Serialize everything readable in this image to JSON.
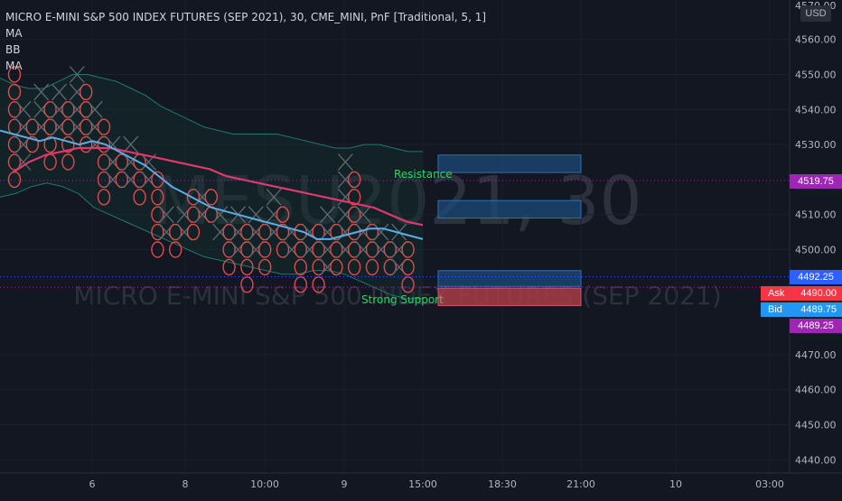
{
  "header": {
    "title": "MICRO E-MINI S&P 500 INDEX FUTURES (SEP 2021), 30, CME_MINI, PnF [Traditional, 5, 1]",
    "indicators": [
      "MA",
      "BB",
      "MA"
    ]
  },
  "watermark": {
    "symbol": "MESU2021, 30",
    "description": "MICRO E-MINI S&P 500 INDEX FUTURES (SEP 2021)"
  },
  "currency_label": "USD",
  "price_axis": {
    "top_value": "4570.00",
    "ticks": [
      "4560.00",
      "4550.00",
      "4540.00",
      "4530.00",
      "4510.00",
      "4500.00",
      "4470.00",
      "4460.00",
      "4450.00",
      "4440.00"
    ]
  },
  "time_axis": {
    "ticks": [
      "6",
      "8",
      "10:00",
      "9",
      "15:00",
      "18:30",
      "21:00",
      "10",
      "03:00"
    ]
  },
  "price_tags": [
    {
      "label": "4519.75",
      "color": "#9c27b0"
    },
    {
      "label": "4492.25",
      "color": "#2962ff"
    },
    {
      "label": "4489.25",
      "color": "#9c27b0"
    }
  ],
  "quotes": {
    "ask": {
      "label": "Ask",
      "value": "4490.00",
      "color": "#f23645"
    },
    "bid": {
      "label": "Bid",
      "value": "4489.75",
      "color": "#2196f3"
    }
  },
  "annotations": {
    "resistance": "Resistance",
    "support": "Strong Support"
  },
  "colors": {
    "background": "#131722",
    "x_mark": "#5d6b74",
    "o_mark": "#e04b4b",
    "ma_fast": "#5aaee6",
    "ma_slow": "#e0386e",
    "bb_band": "#1f7a6a",
    "zone_fill": "#1c4a7a",
    "zone_border": "#2e6fbf",
    "support_zone": "#a83c47"
  },
  "chart_data": {
    "type": "line",
    "title": "MICRO E-MINI S&P 500 INDEX FUTURES (SEP 2021), 30, CME_MINI, PnF [Traditional, 5, 1]",
    "box_size": 5,
    "reversal": 1,
    "ylim": [
      4437,
      4572
    ],
    "columns": [
      {
        "type": "O",
        "high": 4550,
        "low": 4520
      },
      {
        "type": "X",
        "high": 4540,
        "low": 4525
      },
      {
        "type": "O",
        "high": 4535,
        "low": 4530
      },
      {
        "type": "X",
        "high": 4545,
        "low": 4535
      },
      {
        "type": "O",
        "high": 4540,
        "low": 4525
      },
      {
        "type": "X",
        "high": 4545,
        "low": 4535
      },
      {
        "type": "O",
        "high": 4540,
        "low": 4525
      },
      {
        "type": "X",
        "high": 4550,
        "low": 4535
      },
      {
        "type": "O",
        "high": 4545,
        "low": 4530
      },
      {
        "type": "X",
        "high": 4540,
        "low": 4530
      },
      {
        "type": "O",
        "high": 4535,
        "low": 4515
      },
      {
        "type": "X",
        "high": 4530,
        "low": 4520
      },
      {
        "type": "O",
        "high": 4525,
        "low": 4520
      },
      {
        "type": "X",
        "high": 4530,
        "low": 4520
      },
      {
        "type": "O",
        "high": 4525,
        "low": 4515
      },
      {
        "type": "X",
        "high": 4525,
        "low": 4520
      },
      {
        "type": "O",
        "high": 4520,
        "low": 4500
      },
      {
        "type": "X",
        "high": 4510,
        "low": 4505
      },
      {
        "type": "O",
        "high": 4505,
        "low": 4500
      },
      {
        "type": "X",
        "high": 4510,
        "low": 4505
      },
      {
        "type": "O",
        "high": 4515,
        "low": 4505
      },
      {
        "type": "X",
        "high": 4515,
        "low": 4510
      },
      {
        "type": "O",
        "high": 4515,
        "low": 4510
      },
      {
        "type": "X",
        "high": 4510,
        "low": 4505
      },
      {
        "type": "O",
        "high": 4505,
        "low": 4495
      },
      {
        "type": "X",
        "high": 4510,
        "low": 4500
      },
      {
        "type": "O",
        "high": 4505,
        "low": 4490
      },
      {
        "type": "X",
        "high": 4510,
        "low": 4500
      },
      {
        "type": "O",
        "high": 4505,
        "low": 4495
      },
      {
        "type": "X",
        "high": 4515,
        "low": 4505
      },
      {
        "type": "O",
        "high": 4510,
        "low": 4500
      },
      {
        "type": "X",
        "high": 4505,
        "low": 4500
      },
      {
        "type": "O",
        "high": 4505,
        "low": 4490
      },
      {
        "type": "X",
        "high": 4505,
        "low": 4500
      },
      {
        "type": "O",
        "high": 4505,
        "low": 4490
      },
      {
        "type": "X",
        "high": 4510,
        "low": 4495
      },
      {
        "type": "O",
        "high": 4505,
        "low": 4495
      },
      {
        "type": "X",
        "high": 4525,
        "low": 4500
      },
      {
        "type": "O",
        "high": 4520,
        "low": 4495
      },
      {
        "type": "X",
        "high": 4510,
        "low": 4500
      },
      {
        "type": "O",
        "high": 4505,
        "low": 4495
      },
      {
        "type": "X",
        "high": 4505,
        "low": 4500
      },
      {
        "type": "O",
        "high": 4500,
        "low": 4495
      },
      {
        "type": "X",
        "high": 4505,
        "low": 4495
      },
      {
        "type": "O",
        "high": 4500,
        "low": 4490
      }
    ],
    "ma_fast": [
      4534,
      4533,
      4532,
      4531,
      4532,
      4531,
      4530,
      4531,
      4530,
      4528,
      4526,
      4524,
      4521,
      4518,
      4516,
      4514,
      4512,
      4511,
      4510,
      4509,
      4508,
      4507,
      4506,
      4505,
      4503,
      4503,
      4504,
      4505,
      4506,
      4506,
      4505,
      4504,
      4503
    ],
    "ma_slow": [
      4522,
      4525,
      4527,
      4528,
      4529,
      4529,
      4529,
      4528,
      4527,
      4526,
      4525,
      4524,
      4523,
      4521,
      4520,
      4519,
      4518,
      4517,
      4516,
      4515,
      4514,
      4513,
      4512,
      4510,
      4508,
      4507
    ],
    "bb_upper": [
      4549,
      4547,
      4546,
      4546,
      4548,
      4550,
      4550,
      4549,
      4548,
      4546,
      4544,
      4541,
      4539,
      4537,
      4535,
      4534,
      4533,
      4533,
      4533,
      4533,
      4532,
      4531,
      4530,
      4529,
      4529,
      4530,
      4530,
      4529,
      4528,
      4528
    ],
    "bb_lower": [
      4515,
      4516,
      4518,
      4519,
      4518,
      4516,
      4512,
      4510,
      4508,
      4506,
      4504,
      4502,
      4500,
      4498,
      4497,
      4496,
      4495,
      4494,
      4493,
      4493,
      4494,
      4494,
      4493,
      4491,
      4489,
      4487,
      4486,
      4486
    ],
    "zones": [
      {
        "kind": "resistance",
        "low": 4522,
        "high": 4527
      },
      {
        "kind": "resistance",
        "low": 4509,
        "high": 4514
      },
      {
        "kind": "support",
        "low": 4489.5,
        "high": 4494
      },
      {
        "kind": "support",
        "low": 4484,
        "high": 4489
      }
    ],
    "price_lines": [
      4519.75,
      4492.25,
      4489.25
    ],
    "grid": true
  }
}
